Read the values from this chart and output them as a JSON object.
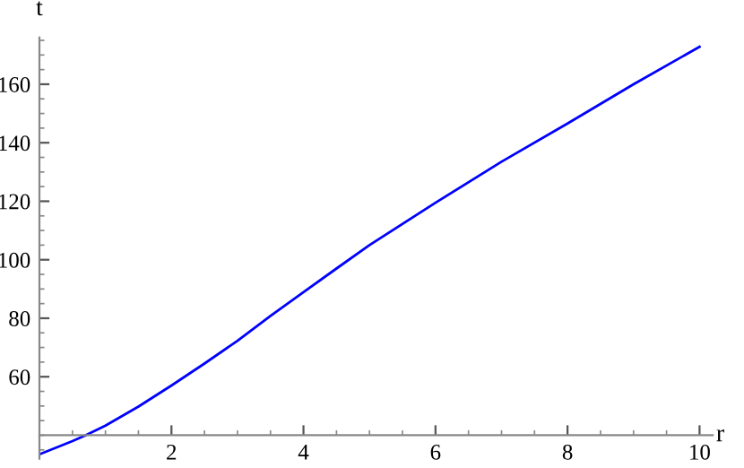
{
  "chart_data": {
    "type": "line",
    "xlabel": "r",
    "ylabel": "t",
    "x": [
      0,
      0.5,
      0.7,
      1,
      1.5,
      2,
      2.5,
      3,
      3.5,
      4,
      4.5,
      5,
      6,
      7,
      8,
      9,
      10
    ],
    "series": [
      {
        "color": "#0000ff",
        "values": [
          33.5,
          38,
          40,
          43.3,
          49.8,
          57,
          64.5,
          72.3,
          80.8,
          88.9,
          97,
          105,
          119.5,
          133.5,
          146.6,
          160,
          172.8
        ]
      }
    ],
    "xlim": [
      0,
      10.2
    ],
    "ylim": [
      32,
      176
    ],
    "xticks": [
      2,
      4,
      6,
      8,
      10
    ],
    "yticks": [
      60,
      80,
      100,
      120,
      140,
      160
    ],
    "grid": false,
    "legend": false,
    "marker": "none",
    "line_style": "solid"
  }
}
